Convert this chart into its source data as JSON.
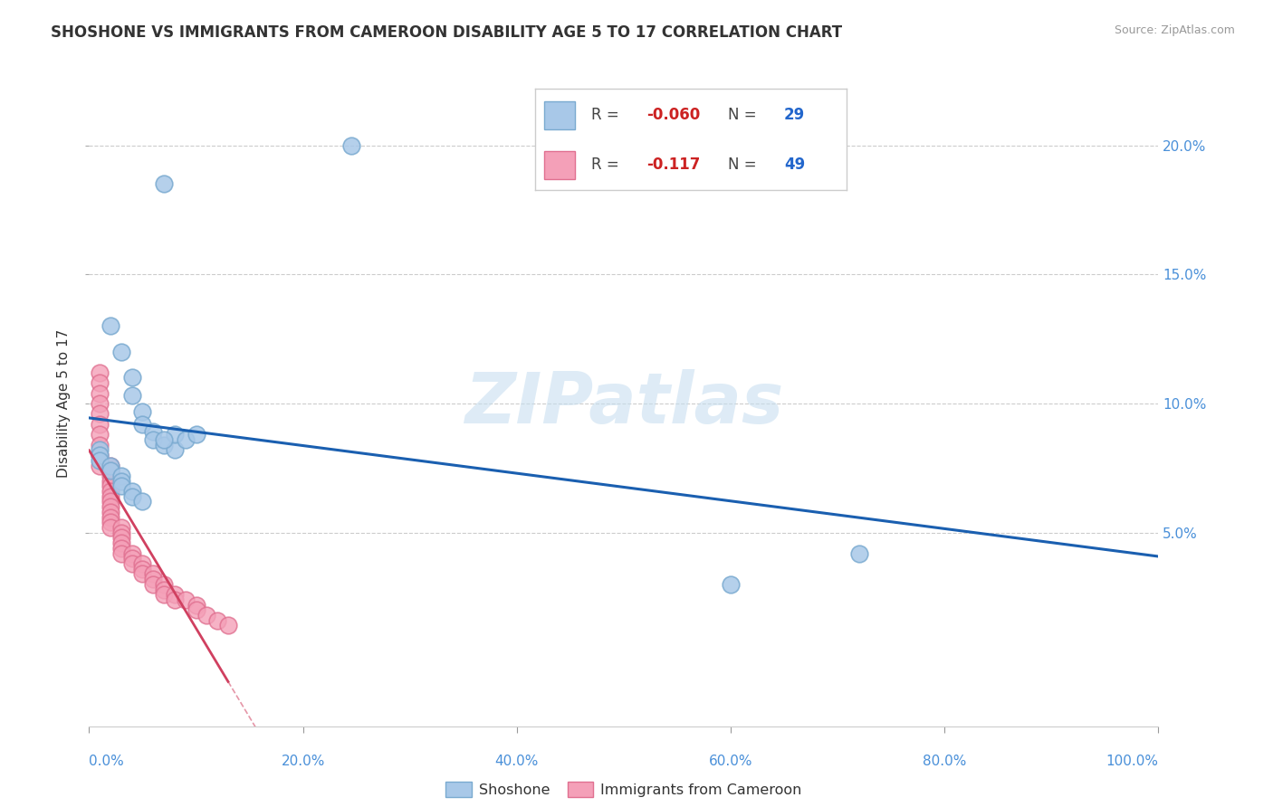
{
  "title": "SHOSHONE VS IMMIGRANTS FROM CAMEROON DISABILITY AGE 5 TO 17 CORRELATION CHART",
  "source": "Source: ZipAtlas.com",
  "ylabel": "Disability Age 5 to 17",
  "xlim": [
    0.0,
    1.0
  ],
  "ylim": [
    -0.025,
    0.225
  ],
  "ytick_vals": [
    0.05,
    0.1,
    0.15,
    0.2
  ],
  "ytick_labels": [
    "5.0%",
    "10.0%",
    "15.0%",
    "20.0%"
  ],
  "xtick_vals": [
    0.0,
    0.2,
    0.4,
    0.6,
    0.8,
    1.0
  ],
  "xtick_labels": [
    "0.0%",
    "20.0%",
    "40.0%",
    "60.0%",
    "80.0%",
    "100.0%"
  ],
  "shoshone_color": "#a8c8e8",
  "shoshone_edge": "#7aaad0",
  "cameroon_color": "#f4a0b8",
  "cameroon_edge": "#e07090",
  "line1_color": "#1a5fb0",
  "line2_color": "#d04060",
  "background_color": "#ffffff",
  "watermark_color": "#c8dff0",
  "shoshone_x": [
    0.245,
    0.07,
    0.02,
    0.03,
    0.04,
    0.04,
    0.05,
    0.05,
    0.06,
    0.06,
    0.07,
    0.08,
    0.08,
    0.09,
    0.1,
    0.01,
    0.01,
    0.01,
    0.02,
    0.02,
    0.03,
    0.03,
    0.03,
    0.04,
    0.04,
    0.05,
    0.72,
    0.6,
    0.07
  ],
  "shoshone_y": [
    0.2,
    0.185,
    0.13,
    0.12,
    0.11,
    0.103,
    0.097,
    0.092,
    0.089,
    0.086,
    0.084,
    0.082,
    0.088,
    0.086,
    0.088,
    0.082,
    0.08,
    0.078,
    0.076,
    0.074,
    0.072,
    0.07,
    0.068,
    0.066,
    0.064,
    0.062,
    0.042,
    0.03,
    0.086
  ],
  "cameroon_x": [
    0.01,
    0.01,
    0.01,
    0.01,
    0.01,
    0.01,
    0.01,
    0.01,
    0.01,
    0.01,
    0.02,
    0.02,
    0.02,
    0.02,
    0.02,
    0.02,
    0.02,
    0.02,
    0.02,
    0.02,
    0.02,
    0.02,
    0.02,
    0.03,
    0.03,
    0.03,
    0.03,
    0.03,
    0.03,
    0.04,
    0.04,
    0.04,
    0.05,
    0.05,
    0.05,
    0.06,
    0.06,
    0.06,
    0.07,
    0.07,
    0.07,
    0.08,
    0.08,
    0.09,
    0.1,
    0.1,
    0.11,
    0.12,
    0.13
  ],
  "cameroon_y": [
    0.112,
    0.108,
    0.104,
    0.1,
    0.096,
    0.092,
    0.088,
    0.084,
    0.08,
    0.076,
    0.076,
    0.074,
    0.072,
    0.07,
    0.068,
    0.066,
    0.064,
    0.062,
    0.06,
    0.058,
    0.056,
    0.054,
    0.052,
    0.052,
    0.05,
    0.048,
    0.046,
    0.044,
    0.042,
    0.042,
    0.04,
    0.038,
    0.038,
    0.036,
    0.034,
    0.034,
    0.032,
    0.03,
    0.03,
    0.028,
    0.026,
    0.026,
    0.024,
    0.024,
    0.022,
    0.02,
    0.018,
    0.016,
    0.014
  ]
}
